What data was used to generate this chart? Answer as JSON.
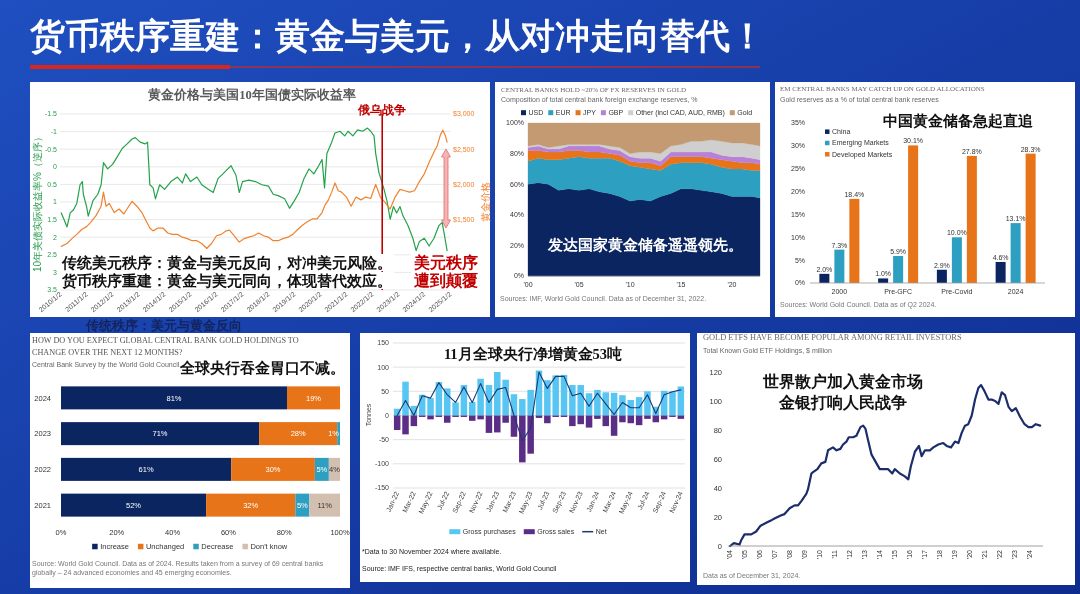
{
  "chart_data": [
    {
      "type": "other",
      "title": "货币秩序重建：黄金与美元，从对冲走向替代！",
      "annotations": [
        "传统秩序：美元与黄金反向"
      ]
    },
    {
      "type": "line",
      "title": "黄金价格与美国10年国债实际收益率",
      "ylabel": "10年美债实际收益率%（逆序）",
      "y2label": "黄金价格",
      "xlim": [
        "2010-01-01",
        "2025-01-05"
      ],
      "xticks": [
        {
          "value": "2010-01-02",
          "label": "2010/1/2"
        },
        {
          "value": "2011-01-02",
          "label": "2011/1/2"
        },
        {
          "value": "2012-01-02",
          "label": "2012/1/2"
        },
        {
          "value": "2013-01-02",
          "label": "2013/1/2"
        },
        {
          "value": "2014-01-02",
          "label": "2014/1/2"
        },
        {
          "value": "2015-01-02",
          "label": "2015/1/2"
        },
        {
          "value": "2016-01-02",
          "label": "2016/1/2"
        },
        {
          "value": "2017-01-02",
          "label": "2017/1/2"
        },
        {
          "value": "2018-01-02",
          "label": "2018/1/2"
        },
        {
          "value": "2019-01-02",
          "label": "2019/1/2"
        },
        {
          "value": "2020-01-02",
          "label": "2020/1/2"
        },
        {
          "value": "2021-01-02",
          "label": "2021/1/2"
        },
        {
          "value": "2022-01-02",
          "label": "2022/1/2"
        },
        {
          "value": "2023-01-02",
          "label": "2023/1/2"
        },
        {
          "value": "2024-01-02",
          "label": "2024/1/2"
        },
        {
          "value": "2025-01-02",
          "label": "2025/1/2"
        }
      ],
      "ylim": [
        3.5,
        -1.5
      ],
      "yticks": [
        -1.5,
        -1,
        -0.5,
        0,
        0.5,
        1,
        1.5,
        2,
        2.5,
        3,
        3.5
      ],
      "y2lim": [
        500,
        3000
      ],
      "y2ticks": [
        {
          "value": 1500,
          "label": "$1,500"
        },
        {
          "value": 2000,
          "label": "$2,000"
        },
        {
          "value": 2500,
          "label": "$2,500"
        },
        {
          "value": 3000,
          "label": "$3,000"
        }
      ],
      "grid": "y",
      "series": [
        {
          "color": "#22a34a",
          "x": [
            "2010-01-19",
            "2010-02-25",
            "2010-04-10",
            "2010-05-25",
            "2010-07-10",
            "2010-08-25",
            "2010-10-10",
            "2010-11-11",
            "2010-11-25",
            "2011-01-10",
            "2011-02-02",
            "2011-04-10",
            "2011-06-17",
            "2011-08-02",
            "2011-09-04",
            "2011-11-02",
            "2012-01-10",
            "2012-03-17",
            "2012-05-25",
            "2012-08-02",
            "2012-10-10",
            "2012-11-25",
            "2013-02-02",
            "2013-04-10",
            "2013-05-16",
            "2013-06-17",
            "2013-08-02",
            "2013-09-04",
            "2013-11-02",
            "2014-01-10",
            "2014-04-10",
            "2014-07-10",
            "2014-09-17",
            "2014-11-02",
            "2015-01-10",
            "2015-04-10",
            "2015-06-17",
            "2015-09-17",
            "2015-11-25",
            "2016-02-02",
            "2016-04-10",
            "2016-06-17",
            "2016-08-02",
            "2016-10-10",
            "2016-11-25",
            "2017-01-10",
            "2017-04-10",
            "2017-07-10",
            "2017-10-10",
            "2018-01-10",
            "2018-03-17",
            "2018-05-25",
            "2018-08-25",
            "2018-11-02",
            "2019-01-10",
            "2019-03-17",
            "2019-05-25",
            "2019-08-02",
            "2019-10-10",
            "2019-12-17",
            "2020-02-02",
            "2020-03-08",
            "2020-04-10",
            "2020-06-17",
            "2020-08-02",
            "2020-10-10",
            "2020-12-17",
            "2021-02-02",
            "2021-04-10",
            "2021-06-17",
            "2021-08-25",
            "2021-11-02",
            "2021-12-17",
            "2022-02-02",
            "2022-02-25",
            "2022-04-10",
            "2022-06-17",
            "2022-08-02",
            "2022-09-17",
            "2022-11-02",
            "2022-12-17",
            "2023-02-02",
            "2023-03-17",
            "2023-05-25",
            "2023-08-02",
            "2023-09-17",
            "2023-11-02",
            "2024-01-10",
            "2024-03-17",
            "2024-05-25",
            "2024-08-02",
            "2024-09-17",
            "2024-10-19",
            "2024-11-25"
          ],
          "values": [
            1.31,
            1.49,
            1.71,
            1.31,
            1.22,
            1.04,
            0.51,
            0.42,
            0.78,
            1.13,
            1.4,
            0.96,
            0.78,
            0.51,
            -0.12,
            0.06,
            -0.07,
            -0.29,
            -0.52,
            -0.65,
            -0.79,
            -0.83,
            -0.7,
            -0.65,
            -0.7,
            0.51,
            0.6,
            0.91,
            0.51,
            0.64,
            0.42,
            0.29,
            0.46,
            0.2,
            0.42,
            0.29,
            0.51,
            0.64,
            0.73,
            0.33,
            0.2,
            0.06,
            -0.03,
            0.24,
            0.73,
            0.42,
            0.38,
            0.42,
            0.51,
            0.55,
            0.78,
            0.82,
            0.91,
            1.18,
            0.96,
            0.73,
            0.33,
            0.06,
            0.2,
            -0.03,
            -0.21,
            0.6,
            -0.38,
            -0.7,
            -0.96,
            -1.01,
            -0.88,
            -1.01,
            -0.88,
            -1.05,
            -1.01,
            -1.1,
            -1.01,
            -0.88,
            -0.38,
            0.15,
            0.6,
            0.96,
            1.49,
            1.13,
            1.31,
            1.13,
            1.4,
            1.67,
            2.03,
            2.38,
            2.12,
            2.03,
            2.25,
            2.03,
            1.67,
            1.58,
            1.94,
            2.38
          ]
        },
        {
          "color": "#f0822e",
          "axis": "y2",
          "x": [
            "2010-01-19",
            "2010-04-10",
            "2010-06-17",
            "2010-08-25",
            "2010-11-02",
            "2011-01-10",
            "2011-03-17",
            "2011-05-25",
            "2011-08-02",
            "2011-09-04",
            "2011-10-10",
            "2011-11-25",
            "2012-02-02",
            "2012-04-10",
            "2012-06-17",
            "2012-08-25",
            "2012-10-10",
            "2012-12-17",
            "2013-02-25",
            "2013-05-02",
            "2013-06-17",
            "2013-08-02",
            "2013-10-10",
            "2013-12-17",
            "2014-02-25",
            "2014-05-02",
            "2014-07-10",
            "2014-09-17",
            "2014-11-25",
            "2015-02-02",
            "2015-04-10",
            "2015-06-17",
            "2015-08-25",
            "2015-11-02",
            "2016-01-10",
            "2016-03-17",
            "2016-05-25",
            "2016-07-10",
            "2016-09-17",
            "2016-11-25",
            "2017-02-02",
            "2017-04-10",
            "2017-06-17",
            "2017-08-25",
            "2017-11-02",
            "2018-01-10",
            "2018-03-17",
            "2018-05-25",
            "2018-08-02",
            "2018-10-10",
            "2018-12-17",
            "2019-02-25",
            "2019-05-02",
            "2019-07-10",
            "2019-09-17",
            "2019-11-25",
            "2020-02-02",
            "2020-03-17",
            "2020-05-02",
            "2020-06-17",
            "2020-08-02",
            "2020-09-17",
            "2020-11-02",
            "2021-01-10",
            "2021-03-17",
            "2021-05-25",
            "2021-08-02",
            "2021-10-10",
            "2021-12-17",
            "2022-02-25",
            "2022-05-02",
            "2022-07-10",
            "2022-09-17",
            "2022-11-25",
            "2023-02-02",
            "2023-04-10",
            "2023-06-17",
            "2023-08-25",
            "2023-11-02",
            "2024-01-10",
            "2024-03-17",
            "2024-05-25",
            "2024-07-10",
            "2024-08-25",
            "2024-09-26",
            "2024-11-02",
            "2024-11-25"
          ],
          "values": [
            1120,
            1160,
            1230,
            1290,
            1360,
            1400,
            1470,
            1560,
            1690,
            1890,
            1690,
            1730,
            1600,
            1650,
            1580,
            1690,
            1760,
            1690,
            1600,
            1470,
            1380,
            1340,
            1380,
            1380,
            1310,
            1290,
            1290,
            1250,
            1230,
            1200,
            1200,
            1160,
            1090,
            1160,
            1270,
            1290,
            1340,
            1350,
            1270,
            1180,
            1230,
            1250,
            1270,
            1310,
            1270,
            1250,
            1200,
            1200,
            1230,
            1250,
            1290,
            1360,
            1420,
            1470,
            1510,
            1510,
            1600,
            1710,
            1780,
            1890,
            2020,
            1910,
            1890,
            1820,
            1690,
            1820,
            1780,
            1820,
            1800,
            2000,
            1820,
            1740,
            1650,
            1820,
            1930,
            1910,
            1890,
            1910,
            2040,
            2150,
            2310,
            2460,
            2550,
            2710,
            2770,
            2690,
            2600
          ]
        }
      ],
      "ref_lines": [
        {
          "axis": "x",
          "value": "2022-05-28",
          "label": "俄乌战争",
          "color": "#c00000"
        }
      ],
      "annotations": [
        "传统美元秩序：黄金与美元反向，对冲美元风险。",
        "货币秩序重建：黄金与美元同向，体现替代效应。",
        "美元秩序遭到颠覆"
      ]
    },
    {
      "type": "area",
      "stacked": true,
      "title": "CENTRAL BANKS HOLD ~20% OF FX RESERVES IN GOLD",
      "subtitle": "Composition of total central bank foreign exchange reserves, %",
      "x": [
        2000,
        2001,
        2002,
        2003,
        2004,
        2005,
        2006,
        2007,
        2008,
        2009,
        2010,
        2011,
        2012,
        2013,
        2014,
        2015,
        2016,
        2017,
        2018,
        2019,
        2020,
        2021,
        2022,
        2022.75
      ],
      "series": [
        {
          "name": "USD",
          "color": "#0b2561",
          "values": [
            60,
            61,
            60,
            56,
            57,
            56,
            57,
            55,
            54,
            52,
            49,
            50,
            49,
            52,
            54,
            57,
            57,
            56,
            55,
            54,
            52,
            52,
            52,
            51
          ]
        },
        {
          "name": "EUR",
          "color": "#2d9fc0",
          "values": [
            15,
            16,
            16,
            20,
            20,
            22,
            20,
            22,
            23,
            23,
            23,
            21,
            21,
            17,
            19,
            17,
            17,
            18,
            18,
            17,
            18,
            18,
            17,
            18
          ]
        },
        {
          "name": "JPY",
          "color": "#e8741a",
          "values": [
            7,
            5,
            5,
            5,
            5,
            4,
            4,
            4,
            3,
            4,
            3,
            3,
            4,
            3,
            5,
            4,
            4,
            4,
            4,
            5,
            5,
            4,
            5,
            4
          ]
        },
        {
          "name": "GBP",
          "color": "#b980d8",
          "values": [
            2,
            3,
            2,
            2,
            3,
            3,
            4,
            4,
            3,
            3,
            3,
            3,
            3,
            3,
            3,
            3,
            3,
            3,
            4,
            3,
            3,
            4,
            3,
            3
          ]
        },
        {
          "name": "Other (incl CAD, AUD, RMB)",
          "color": "#cfcfcf",
          "values": [
            1,
            1,
            1,
            2,
            1,
            1,
            1,
            1,
            2,
            2,
            2,
            4,
            4,
            5,
            4,
            5,
            7,
            7,
            8,
            9,
            9,
            9,
            9,
            9
          ]
        },
        {
          "name": "Gold",
          "color": "#c39a72",
          "values": [
            15,
            14,
            16,
            15,
            14,
            14,
            14,
            14,
            15,
            16,
            20,
            19,
            19,
            20,
            15,
            14,
            12,
            12,
            11,
            12,
            13,
            13,
            14,
            15
          ]
        }
      ],
      "xlim": [
        2000,
        2022.75
      ],
      "xticks": [
        {
          "value": 2000,
          "label": "'00"
        },
        {
          "value": 2005,
          "label": "'05"
        },
        {
          "value": 2010,
          "label": "'10"
        },
        {
          "value": 2015,
          "label": "'15"
        },
        {
          "value": 2020,
          "label": "'20"
        }
      ],
      "ylim": [
        0,
        100
      ],
      "yticks": [
        {
          "value": 0,
          "label": "0%"
        },
        {
          "value": 20,
          "label": "20%"
        },
        {
          "value": 40,
          "label": "40%"
        },
        {
          "value": 60,
          "label": "60%"
        },
        {
          "value": 80,
          "label": "80%"
        },
        {
          "value": 100,
          "label": "100%"
        }
      ],
      "legend": "top",
      "annotations": [
        "发达国家黄金储备遥遥领先。",
        "Sources: IMF, World Gold Council. Data as of December 31, 2022."
      ]
    },
    {
      "type": "bar",
      "title": "EM CENTRAL BANKS MAY CATCH UP ON GOLD ALLOCATIONS",
      "subtitle": "Gold reserves as a % of total central bank reserves",
      "categories": [
        "2000",
        "Pre-GFC",
        "Pre-Covid",
        "2024"
      ],
      "series": [
        {
          "name": "China",
          "color": "#0b2561",
          "values": [
            2.0,
            1.0,
            2.9,
            4.6
          ],
          "value_labels": [
            "2.0%",
            "1.0%",
            "2.9%",
            "4.6%"
          ]
        },
        {
          "name": "Emerging Markets",
          "color": "#2d9fc0",
          "values": [
            7.3,
            5.9,
            10.0,
            13.1
          ],
          "value_labels": [
            "7.3%",
            "5.9%",
            "10.0%",
            "13.1%"
          ]
        },
        {
          "name": "Developed Markets",
          "color": "#e8741a",
          "values": [
            18.4,
            30.1,
            27.8,
            28.3
          ],
          "value_labels": [
            "18.4%",
            "30.1%",
            "27.8%",
            "28.3%"
          ]
        }
      ],
      "ylim": [
        0,
        35
      ],
      "yticks": [
        {
          "value": 0,
          "label": "0%"
        },
        {
          "value": 5,
          "label": "5%"
        },
        {
          "value": 10,
          "label": "10%"
        },
        {
          "value": 15,
          "label": "15%"
        },
        {
          "value": 20,
          "label": "20%"
        },
        {
          "value": 25,
          "label": "25%"
        },
        {
          "value": 30,
          "label": "30%"
        },
        {
          "value": 35,
          "label": "35%"
        }
      ],
      "legend": "top left",
      "annotations": [
        "中国黄金储备急起直追",
        "Sources: World Gold Council. Data as of Q2 2024."
      ]
    },
    {
      "type": "bar",
      "orientation": "horizontal",
      "stacked": true,
      "title": "HOW DO YOU EXPECT GLOBAL CENTRAL BANK GOLD HOLDINGS TO CHANGE OVER THE NEXT 12 MONTHS?",
      "subtitle": "Central Bank Survey by the World Gold Council",
      "categories": [
        "2024",
        "2023",
        "2022",
        "2021"
      ],
      "series": [
        {
          "name": "Increase",
          "color": "#0b2561",
          "values": [
            81,
            71,
            61,
            52
          ],
          "value_labels": [
            "81%",
            "71%",
            "61%",
            "52%"
          ]
        },
        {
          "name": "Unchanged",
          "color": "#e8741a",
          "values": [
            19,
            28,
            30,
            32
          ],
          "value_labels": [
            "19%",
            "28%",
            "30%",
            "32%"
          ]
        },
        {
          "name": "Decrease",
          "color": "#2d9fc0",
          "values": [
            null,
            1,
            5,
            5
          ],
          "value_labels": [
            null,
            "1%",
            "5%",
            "5%"
          ]
        },
        {
          "name": "Don't know",
          "color": "#d3bfb0",
          "values": [
            null,
            null,
            4,
            11
          ],
          "value_labels": [
            null,
            null,
            "4%",
            "11%"
          ]
        }
      ],
      "xlim": [
        0,
        100
      ],
      "xticks": [
        {
          "value": 0,
          "label": "0%"
        },
        {
          "value": 20,
          "label": "20%"
        },
        {
          "value": 40,
          "label": "40%"
        },
        {
          "value": 60,
          "label": "60%"
        },
        {
          "value": 80,
          "label": "80%"
        },
        {
          "value": 100,
          "label": "100%"
        }
      ],
      "legend": "bottom",
      "annotations": [
        "全球央行吞金胃口不减。",
        "Source: World Gold Council. Data as of 2024. Results taken from a survey of 69 central banks globally – 24 advanced economies and 45 emerging economies."
      ]
    },
    {
      "type": "bar",
      "stacked": true,
      "title": "11月全球央行净增黄金53吨",
      "ylabel": "Tonnes",
      "categories": [
        "Jan-22",
        null,
        "Mar-22",
        null,
        "May-22",
        null,
        "Jul-22",
        null,
        "Sep-22",
        null,
        "Nov-22",
        null,
        "Jan-23",
        null,
        "Mar-23",
        null,
        "May-23",
        null,
        "Jul-23",
        null,
        "Sep-23",
        null,
        "Nov-23",
        null,
        "Jan-24",
        null,
        "Mar-24",
        null,
        "May-24",
        null,
        "Jul-24",
        null,
        "Sep-24",
        null,
        "Nov-24"
      ],
      "series": [
        {
          "name": "Gross purchases",
          "color": "#58c6f2",
          "values": [
            14,
            70,
            20,
            43,
            36,
            69,
            56,
            27,
            63,
            28,
            76,
            63,
            90,
            74,
            44,
            34,
            53,
            93,
            73,
            83,
            84,
            63,
            63,
            46,
            53,
            48,
            47,
            42,
            32,
            38,
            50,
            18,
            51,
            50,
            60
          ]
        },
        {
          "name": "Gross sales",
          "color": "#5b2d86",
          "values": [
            -30,
            -39,
            -22,
            -3,
            -8,
            -3,
            -15,
            -3,
            -3,
            -11,
            -8,
            -36,
            -35,
            -15,
            -44,
            -97,
            -79,
            -5,
            -16,
            -3,
            -3,
            -22,
            -18,
            -25,
            -7,
            -22,
            -42,
            -14,
            -16,
            -20,
            -7,
            -14,
            -8,
            -3,
            -7
          ]
        },
        {
          "name": "Net",
          "type": "line",
          "color": "#1b3a73",
          "values": [
            0,
            31,
            0,
            41,
            36,
            68,
            43,
            27,
            59,
            27,
            66,
            27,
            54,
            58,
            0,
            -52,
            -26,
            90,
            56,
            81,
            81,
            41,
            46,
            19,
            46,
            24,
            2,
            27,
            16,
            16,
            43,
            4,
            43,
            49,
            53
          ]
        }
      ],
      "ylim": [
        -150,
        150
      ],
      "yticks": [
        -150,
        -100,
        -50,
        0,
        50,
        100,
        150
      ],
      "grid": "y",
      "legend": "bottom",
      "annotations": [
        "*Data to 30 November 2024 where available.",
        "Source: IMF IFS, respective central banks, World Gold Council"
      ]
    },
    {
      "type": "line",
      "title": "GOLD ETFS HAVE BECOME POPULAR AMONG RETAIL INVESTORS",
      "subtitle": "Total Known Gold ETF Holdings, $ million",
      "x": [
        2004.04,
        2004.29,
        2004.67,
        2004.78,
        2005.0,
        2005.45,
        2005.78,
        2006.07,
        2006.45,
        2006.83,
        2007.0,
        2007.41,
        2007.67,
        2008.01,
        2008.34,
        2008.57,
        2008.79,
        2009.12,
        2009.23,
        2009.46,
        2009.57,
        2009.86,
        2010.12,
        2010.39,
        2010.57,
        2010.9,
        2011.13,
        2011.39,
        2011.57,
        2011.8,
        2011.95,
        2012.24,
        2012.46,
        2012.73,
        2012.91,
        2013.06,
        2013.24,
        2013.47,
        2013.8,
        2014.02,
        2014.36,
        2014.58,
        2014.85,
        2015.02,
        2015.36,
        2015.69,
        2015.92,
        2016.09,
        2016.36,
        2016.63,
        2016.81,
        2017.03,
        2017.36,
        2017.59,
        2017.92,
        2018.25,
        2018.48,
        2018.77,
        2019.03,
        2019.26,
        2019.48,
        2019.7,
        2019.92,
        2020.15,
        2020.37,
        2020.59,
        2020.77,
        2020.99,
        2021.26,
        2021.48,
        2021.71,
        2021.93,
        2022.15,
        2022.37,
        2022.6,
        2022.82,
        2023.09,
        2023.38,
        2023.67,
        2023.93,
        2024.16,
        2024.42,
        2024.71
      ],
      "series": [
        {
          "color": "#1c2d6b",
          "values": [
            0,
            2,
            1,
            4,
            8,
            8,
            10,
            14,
            16,
            18,
            19,
            21,
            22,
            26,
            28,
            28,
            31,
            36,
            39,
            50,
            51,
            53,
            57,
            58,
            66,
            68,
            66,
            67,
            70,
            72,
            75,
            75,
            76,
            82,
            83,
            81,
            73,
            63,
            57,
            53,
            53,
            53,
            50,
            53,
            50,
            48,
            46,
            55,
            65,
            69,
            62,
            66,
            66,
            68,
            70,
            71,
            69,
            68,
            72,
            71,
            78,
            83,
            84,
            90,
            101,
            109,
            111,
            107,
            101,
            101,
            100,
            98,
            106,
            104,
            96,
            93,
            95,
            89,
            84,
            82,
            82,
            84,
            83
          ]
        }
      ],
      "xlim": [
        2003.9,
        2024.9
      ],
      "xticks": [
        {
          "value": 2004,
          "label": "'04"
        },
        {
          "value": 2005,
          "label": "'05"
        },
        {
          "value": 2006,
          "label": "'06"
        },
        {
          "value": 2007,
          "label": "'07"
        },
        {
          "value": 2008,
          "label": "'08"
        },
        {
          "value": 2009,
          "label": "'09"
        },
        {
          "value": 2010,
          "label": "'10"
        },
        {
          "value": 2011,
          "label": "'11"
        },
        {
          "value": 2012,
          "label": "'12"
        },
        {
          "value": 2013,
          "label": "'13"
        },
        {
          "value": 2014,
          "label": "'14"
        },
        {
          "value": 2015,
          "label": "'15"
        },
        {
          "value": 2016,
          "label": "'16"
        },
        {
          "value": 2017,
          "label": "'17"
        },
        {
          "value": 2018,
          "label": "'18"
        },
        {
          "value": 2019,
          "label": "'19"
        },
        {
          "value": 2020,
          "label": "'20"
        },
        {
          "value": 2021,
          "label": "'21"
        },
        {
          "value": 2022,
          "label": "'22"
        },
        {
          "value": 2023,
          "label": "'23"
        },
        {
          "value": 2024,
          "label": "'24"
        }
      ],
      "ylim": [
        0,
        120
      ],
      "yticks": [
        0,
        20,
        40,
        60,
        80,
        100,
        120
      ],
      "annotations": [
        "世界散户加入黄金市场",
        "金银打响人民战争",
        "Data as of December 31, 2024."
      ]
    }
  ]
}
